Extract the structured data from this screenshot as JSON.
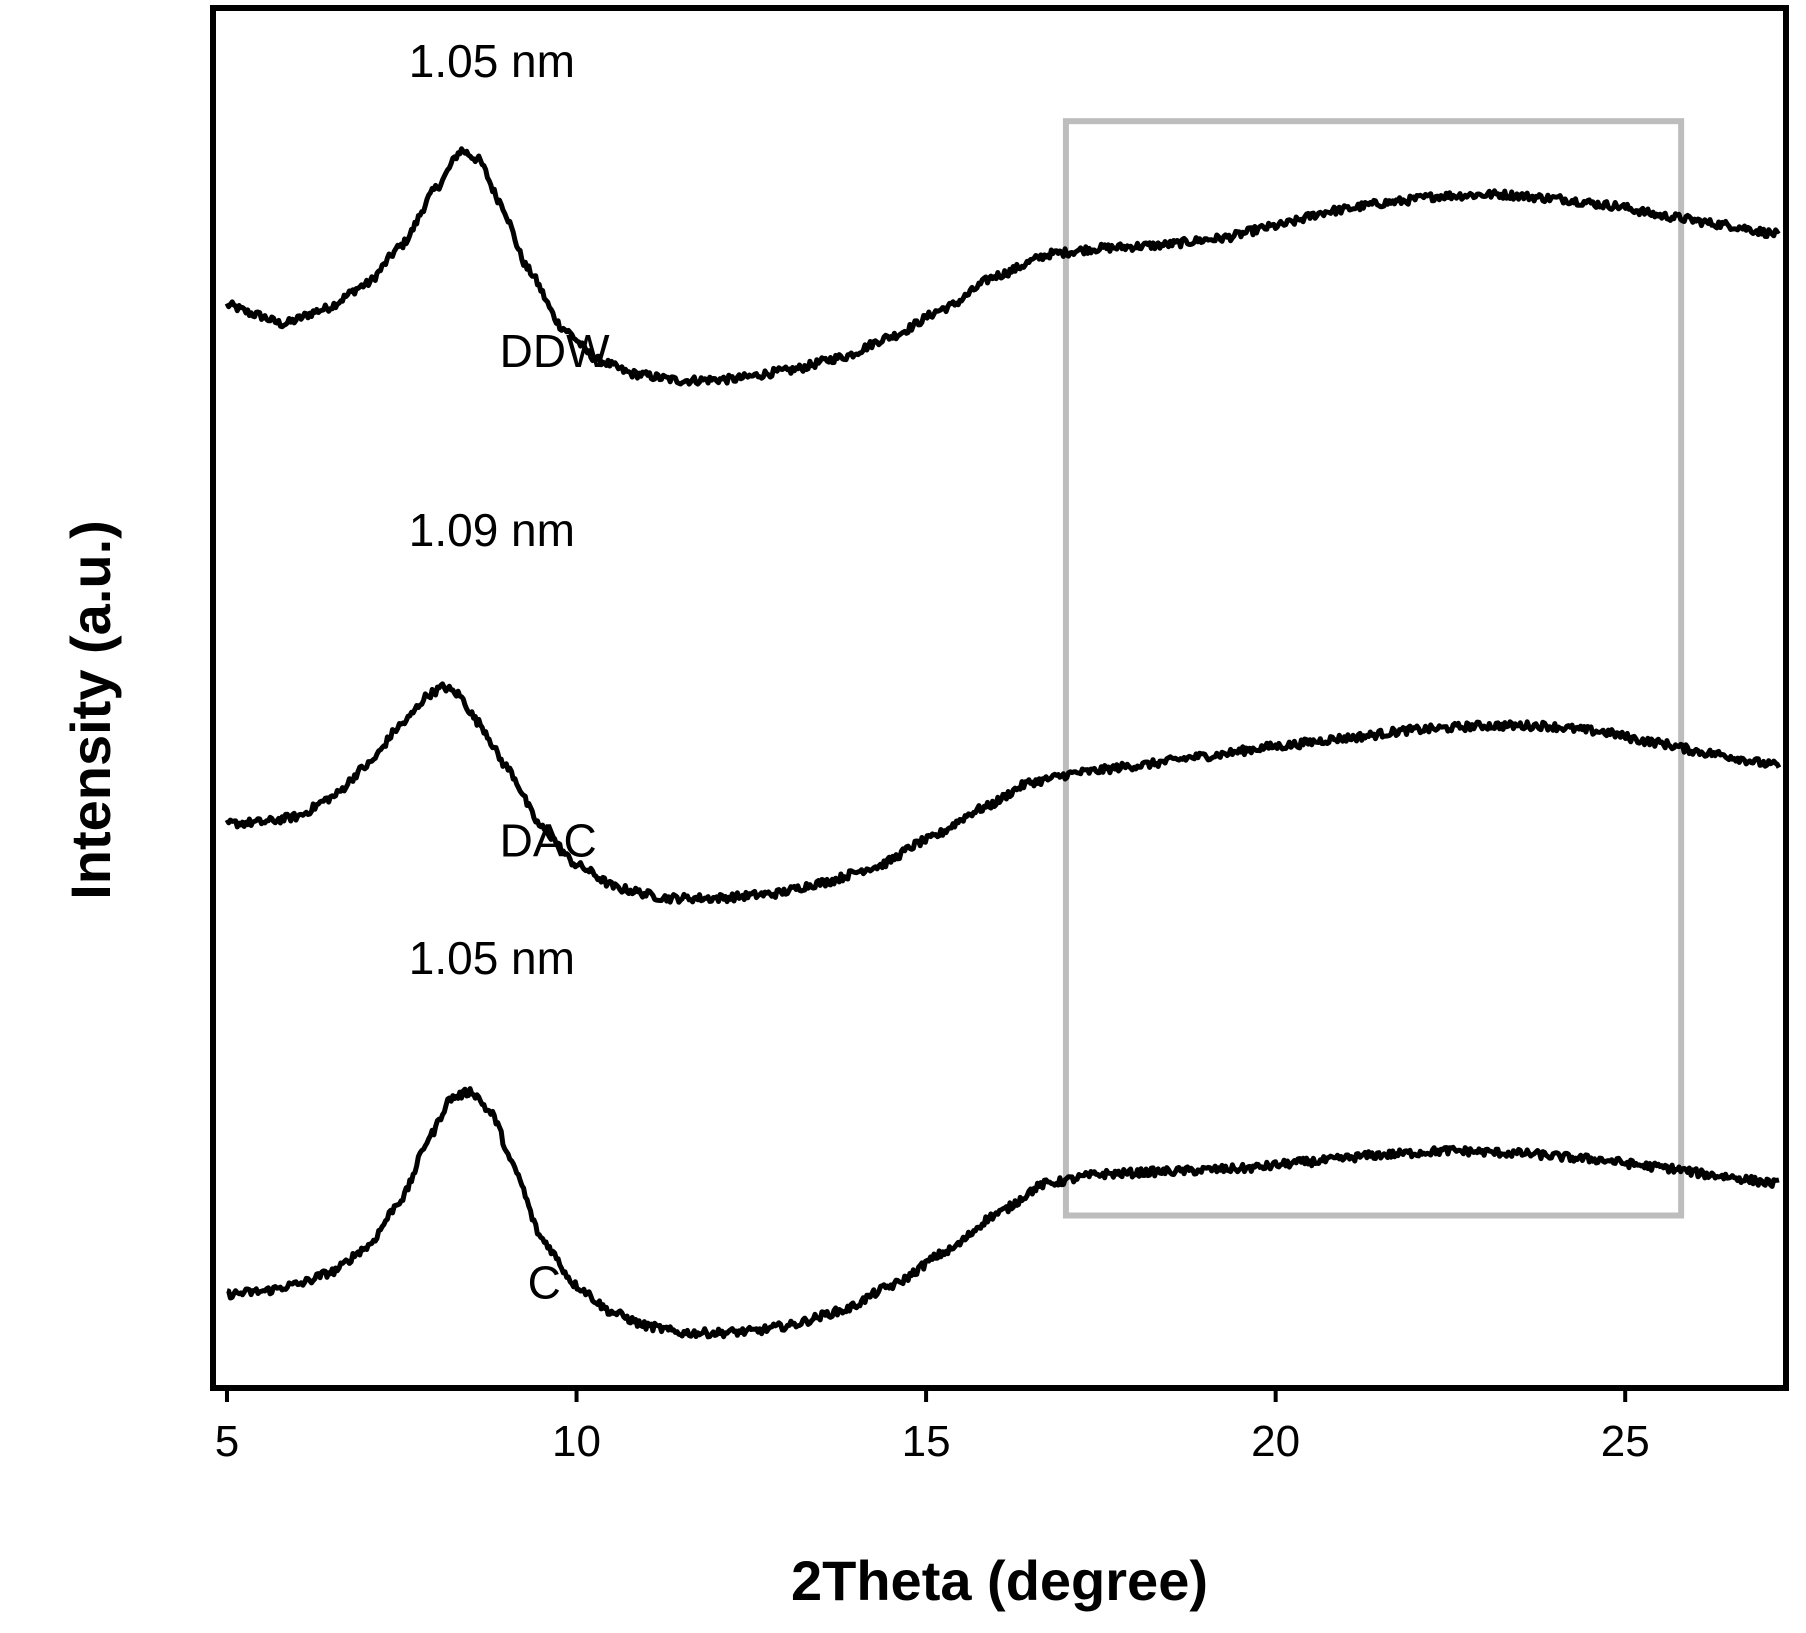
{
  "chart_data": {
    "type": "line",
    "title": "",
    "xlabel": "2Theta (degree)",
    "ylabel": "Intensity (a.u.)",
    "xlim": [
      4.8,
      27.3
    ],
    "ylim": [
      0,
      1
    ],
    "y_ticks_shown": false,
    "grid": false,
    "legend": "none",
    "x_ticks": [
      5,
      10,
      15,
      20,
      25
    ],
    "x_tick_labels": [
      "5",
      "10",
      "15",
      "20",
      "25"
    ],
    "series": [
      {
        "name": "DDW",
        "label": "DDW",
        "peak_label": "1.05 nm",
        "x": [
          5,
          5.4,
          5.8,
          6.4,
          7.0,
          7.5,
          8.0,
          8.35,
          8.6,
          8.9,
          9.3,
          9.8,
          10.3,
          10.8,
          11.5,
          12.2,
          13.0,
          13.8,
          14.5,
          15.3,
          16.0,
          16.8,
          17.5,
          18.3,
          19.2,
          20.0,
          20.8,
          21.6,
          22.4,
          23.2,
          24.0,
          24.8,
          25.6,
          26.4,
          27.2
        ],
        "values": [
          0.785,
          0.778,
          0.771,
          0.782,
          0.8,
          0.828,
          0.87,
          0.897,
          0.89,
          0.86,
          0.811,
          0.768,
          0.745,
          0.735,
          0.73,
          0.731,
          0.737,
          0.747,
          0.762,
          0.783,
          0.806,
          0.822,
          0.826,
          0.828,
          0.833,
          0.842,
          0.853,
          0.859,
          0.864,
          0.865,
          0.862,
          0.857,
          0.849,
          0.843,
          0.836
        ]
      },
      {
        "name": "DAC",
        "label": "DAC",
        "peak_label": "1.09  nm",
        "x": [
          5,
          5.5,
          6.0,
          6.5,
          7.0,
          7.5,
          7.9,
          8.1,
          8.3,
          8.6,
          9.0,
          9.5,
          10.0,
          10.6,
          11.3,
          12.0,
          12.8,
          13.5,
          14.3,
          15.0,
          15.8,
          16.5,
          17.2,
          18.0,
          19.0,
          20.0,
          21.0,
          22.0,
          23.0,
          23.8,
          24.6,
          25.4,
          26.2,
          27.2
        ],
        "values": [
          0.409,
          0.41,
          0.414,
          0.428,
          0.451,
          0.481,
          0.503,
          0.508,
          0.503,
          0.482,
          0.45,
          0.406,
          0.379,
          0.362,
          0.355,
          0.355,
          0.358,
          0.366,
          0.378,
          0.397,
          0.42,
          0.439,
          0.446,
          0.451,
          0.458,
          0.465,
          0.471,
          0.477,
          0.48,
          0.48,
          0.476,
          0.468,
          0.46,
          0.451
        ]
      },
      {
        "name": "C",
        "label": "C",
        "peak_label": "1.05 nm",
        "x": [
          5,
          5.5,
          6.0,
          6.5,
          7.0,
          7.5,
          7.9,
          8.2,
          8.5,
          8.8,
          9.1,
          9.5,
          10.0,
          10.5,
          11.0,
          11.5,
          12.0,
          12.5,
          13.0,
          13.8,
          14.5,
          15.3,
          16.0,
          16.7,
          17.5,
          18.5,
          19.5,
          20.5,
          21.5,
          22.5,
          23.5,
          24.5,
          25.5,
          26.3,
          27.2
        ],
        "values": [
          0.068,
          0.07,
          0.075,
          0.084,
          0.102,
          0.137,
          0.182,
          0.21,
          0.215,
          0.198,
          0.16,
          0.108,
          0.074,
          0.055,
          0.045,
          0.04,
          0.04,
          0.041,
          0.045,
          0.056,
          0.074,
          0.099,
          0.126,
          0.148,
          0.155,
          0.157,
          0.159,
          0.164,
          0.169,
          0.172,
          0.17,
          0.166,
          0.16,
          0.154,
          0.148
        ]
      }
    ],
    "highlight_box": {
      "x_range": [
        17.0,
        25.8
      ],
      "y_range": [
        0.125,
        0.918
      ]
    }
  }
}
